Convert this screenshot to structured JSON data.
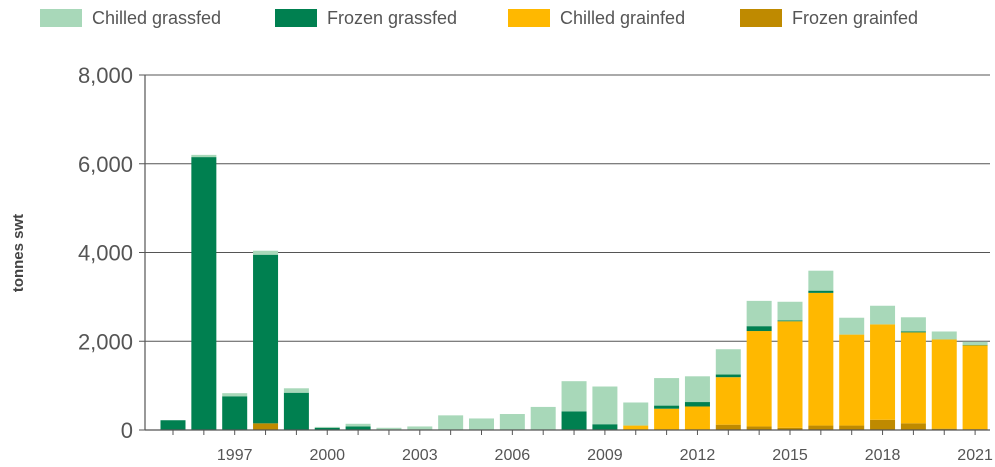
{
  "chart_data": {
    "type": "bar",
    "stacked": true,
    "ylabel": "tonnes swt",
    "xlabel": "",
    "ylim": [
      0,
      8000
    ],
    "yticks": [
      0,
      2000,
      4000,
      6000,
      8000
    ],
    "ytick_labels": [
      "0",
      "2,000",
      "4,000",
      "6,000",
      "8,000"
    ],
    "xtick_labels": [
      "1997",
      "2000",
      "2003",
      "2006",
      "2009",
      "2012",
      "2015",
      "2018",
      "2021"
    ],
    "grid": true,
    "legend_position": "top",
    "categories": [
      "1995",
      "1996",
      "1997",
      "1998",
      "1999",
      "2000",
      "2001",
      "2002",
      "2003",
      "2004",
      "2005",
      "2006",
      "2007",
      "2008",
      "2009",
      "2010",
      "2011",
      "2012",
      "2013",
      "2014",
      "2015",
      "2016",
      "2017",
      "2018",
      "2019",
      "2020",
      "2021"
    ],
    "series": [
      {
        "name": "Frozen grainfed",
        "color": "#bf8a00",
        "values": [
          0,
          0,
          0,
          150,
          0,
          0,
          0,
          0,
          0,
          0,
          0,
          0,
          0,
          0,
          0,
          0,
          0,
          0,
          120,
          80,
          50,
          100,
          100,
          230,
          150,
          30,
          20
        ]
      },
      {
        "name": "Chilled grainfed",
        "color": "#ffb800",
        "values": [
          0,
          0,
          0,
          0,
          0,
          0,
          0,
          0,
          0,
          0,
          0,
          0,
          0,
          0,
          0,
          100,
          480,
          530,
          1070,
          2150,
          2400,
          2990,
          2050,
          2150,
          2050,
          2010,
          1890
        ]
      },
      {
        "name": "Frozen grassfed",
        "color": "#008050",
        "values": [
          220,
          6150,
          760,
          3800,
          840,
          50,
          80,
          0,
          0,
          0,
          0,
          0,
          0,
          420,
          130,
          0,
          70,
          100,
          60,
          110,
          20,
          50,
          0,
          0,
          20,
          0,
          10
        ]
      },
      {
        "name": "Chilled grassfed",
        "color": "#a8d8b9",
        "values": [
          0,
          50,
          70,
          90,
          100,
          20,
          60,
          50,
          80,
          330,
          260,
          360,
          520,
          680,
          850,
          520,
          620,
          580,
          570,
          570,
          420,
          450,
          380,
          420,
          320,
          180,
          70
        ]
      }
    ],
    "legend_order": [
      "Chilled grassfed",
      "Frozen grassfed",
      "Chilled grainfed",
      "Frozen grainfed"
    ]
  }
}
